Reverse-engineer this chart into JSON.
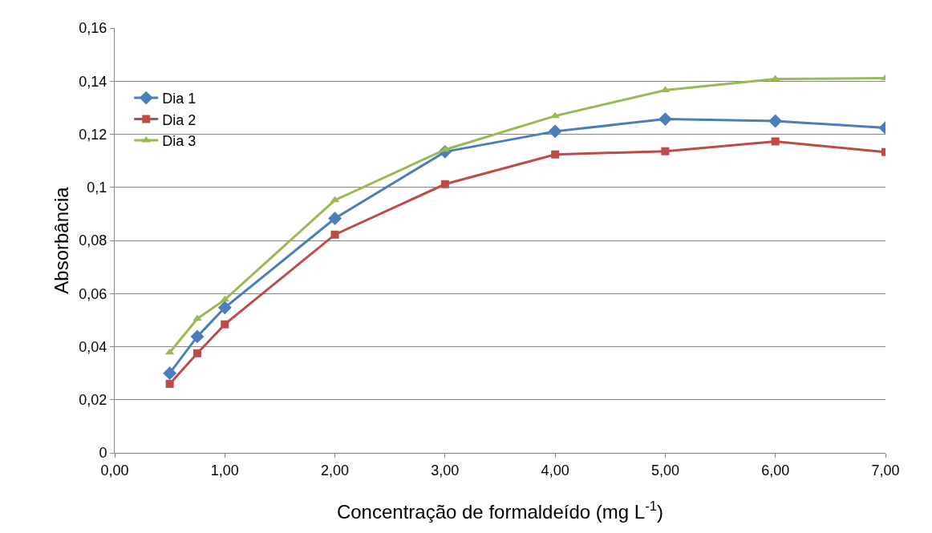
{
  "chart_data": {
    "type": "line",
    "xlabel": "Concentração de formaldeído (mg L$^{-1}$)",
    "ylabel": "Absorbância",
    "x": [
      0.5,
      0.75,
      1,
      2,
      3,
      4,
      5,
      6,
      7
    ],
    "series": [
      {
        "name": "Dia 1",
        "color": "#4a7ebb",
        "marker": "diamond",
        "values": [
          0.03,
          0.0438,
          0.0547,
          0.0883,
          0.1134,
          0.1211,
          0.1257,
          0.125,
          0.1224
        ]
      },
      {
        "name": "Dia 2",
        "color": "#be4b48",
        "marker": "square",
        "values": [
          0.026,
          0.0375,
          0.0484,
          0.0822,
          0.1012,
          0.1124,
          0.1136,
          0.1173,
          0.1133
        ]
      },
      {
        "name": "Dia 3",
        "color": "#98b954",
        "marker": "triangle",
        "values": [
          0.0378,
          0.0505,
          0.0577,
          0.0952,
          0.1142,
          0.1269,
          0.1366,
          0.1408,
          0.1411
        ]
      }
    ],
    "xlim": [
      0,
      7
    ],
    "xticks": [
      {
        "value": 0,
        "label": "0,00"
      },
      {
        "value": 1,
        "label": "1,00"
      },
      {
        "value": 2,
        "label": "2,00"
      },
      {
        "value": 3,
        "label": "3,00"
      },
      {
        "value": 4,
        "label": "4,00"
      },
      {
        "value": 5,
        "label": "5,00"
      },
      {
        "value": 6,
        "label": "6,00"
      },
      {
        "value": 7,
        "label": "7,00"
      }
    ],
    "ylim": [
      0,
      0.16
    ],
    "yticks": [
      0,
      {
        "value": 0.02,
        "label": "0,02"
      },
      {
        "value": 0.04,
        "label": "0,04"
      },
      {
        "value": 0.06,
        "label": "0,06"
      },
      {
        "value": 0.08,
        "label": "0,08"
      },
      {
        "value": 0.1,
        "label": "0,1"
      },
      {
        "value": 0.12,
        "label": "0,12"
      },
      {
        "value": 0.14,
        "label": "0,14"
      },
      {
        "value": 0.16,
        "label": "0,16"
      }
    ],
    "grid": "y",
    "legend": "top left",
    "line_style": "solid"
  }
}
